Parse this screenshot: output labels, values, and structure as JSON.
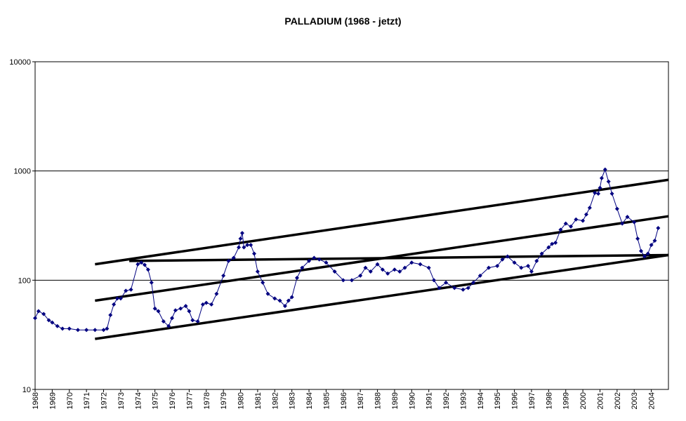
{
  "chart_data": {
    "type": "scatter",
    "title": "PALLADIUM (1968 - jetzt)",
    "xlabel": "",
    "ylabel": "",
    "y_scale": "log",
    "ylim": [
      10,
      10000
    ],
    "xlim": [
      1968,
      2005
    ],
    "yticks": [
      "10",
      "100",
      "1000",
      "10000"
    ],
    "xticks": [
      "1968",
      "1969",
      "1970",
      "1971",
      "1972",
      "1973",
      "1974",
      "1975",
      "1976",
      "1977",
      "1978",
      "1979",
      "1980",
      "1981",
      "1982",
      "1983",
      "1984",
      "1985",
      "1986",
      "1987",
      "1988",
      "1989",
      "1990",
      "1991",
      "1992",
      "1993",
      "1994",
      "1995",
      "1996",
      "1997",
      "1998",
      "1999",
      "2000",
      "2001",
      "2002",
      "2003",
      "2004"
    ],
    "grid": "horizontal",
    "series_color": "#000080",
    "trendline_color": "#000000",
    "series": [
      {
        "name": "",
        "x": [
          1968.0,
          1968.2,
          1968.5,
          1968.8,
          1969.0,
          1969.3,
          1969.6,
          1970.0,
          1970.5,
          1971.0,
          1971.5,
          1972.0,
          1972.2,
          1972.4,
          1972.6,
          1972.8,
          1973.0,
          1973.3,
          1973.6,
          1974.0,
          1974.2,
          1974.4,
          1974.6,
          1974.8,
          1975.0,
          1975.2,
          1975.5,
          1975.8,
          1976.0,
          1976.2,
          1976.5,
          1976.8,
          1977.0,
          1977.2,
          1977.5,
          1977.8,
          1978.0,
          1978.3,
          1978.6,
          1979.0,
          1979.3,
          1979.6,
          1979.9,
          1980.0,
          1980.1,
          1980.2,
          1980.4,
          1980.6,
          1980.8,
          1981.0,
          1981.3,
          1981.6,
          1982.0,
          1982.3,
          1982.6,
          1982.8,
          1983.0,
          1983.3,
          1983.6,
          1984.0,
          1984.3,
          1984.6,
          1985.0,
          1985.5,
          1986.0,
          1986.5,
          1987.0,
          1987.3,
          1987.6,
          1988.0,
          1988.3,
          1988.6,
          1989.0,
          1989.3,
          1989.6,
          1990.0,
          1990.5,
          1991.0,
          1991.3,
          1991.6,
          1992.0,
          1992.5,
          1993.0,
          1993.3,
          1993.6,
          1994.0,
          1994.5,
          1995.0,
          1995.3,
          1995.6,
          1996.0,
          1996.4,
          1996.8,
          1997.0,
          1997.3,
          1997.6,
          1998.0,
          1998.2,
          1998.4,
          1998.7,
          1999.0,
          1999.3,
          1999.6,
          2000.0,
          2000.2,
          2000.4,
          2000.7,
          2000.9,
          2001.0,
          2001.1,
          2001.3,
          2001.5,
          2001.7,
          2002.0,
          2002.3,
          2002.6,
          2003.0,
          2003.2,
          2003.4,
          2003.6,
          2003.8,
          2004.0,
          2004.2,
          2004.4
        ],
        "values": [
          45,
          52,
          49,
          43,
          41,
          38,
          36,
          36,
          35,
          35,
          35,
          35,
          36,
          48,
          60,
          68,
          68,
          80,
          82,
          140,
          145,
          138,
          125,
          95,
          55,
          52,
          42,
          38,
          45,
          53,
          55,
          58,
          52,
          43,
          42,
          60,
          62,
          60,
          75,
          110,
          150,
          160,
          200,
          240,
          270,
          200,
          210,
          210,
          175,
          120,
          95,
          75,
          68,
          65,
          58,
          65,
          70,
          105,
          130,
          150,
          160,
          155,
          145,
          120,
          100,
          100,
          110,
          130,
          120,
          140,
          125,
          115,
          125,
          120,
          130,
          145,
          140,
          130,
          100,
          85,
          95,
          85,
          82,
          85,
          95,
          110,
          130,
          135,
          155,
          165,
          145,
          130,
          135,
          120,
          150,
          175,
          200,
          215,
          220,
          290,
          330,
          310,
          360,
          350,
          400,
          460,
          630,
          620,
          700,
          860,
          1030,
          800,
          620,
          450,
          330,
          380,
          340,
          240,
          185,
          165,
          175,
          210,
          230,
          300
        ]
      }
    ],
    "trendlines": [
      {
        "from": [
          1971.5,
          140
        ],
        "to": [
          2005,
          830
        ]
      },
      {
        "from": [
          1971.5,
          65
        ],
        "to": [
          2005,
          385
        ]
      },
      {
        "from": [
          1971.5,
          29
        ],
        "to": [
          2005,
          170
        ]
      },
      {
        "from": [
          1973.5,
          150
        ],
        "to": [
          2005,
          170
        ]
      }
    ]
  }
}
